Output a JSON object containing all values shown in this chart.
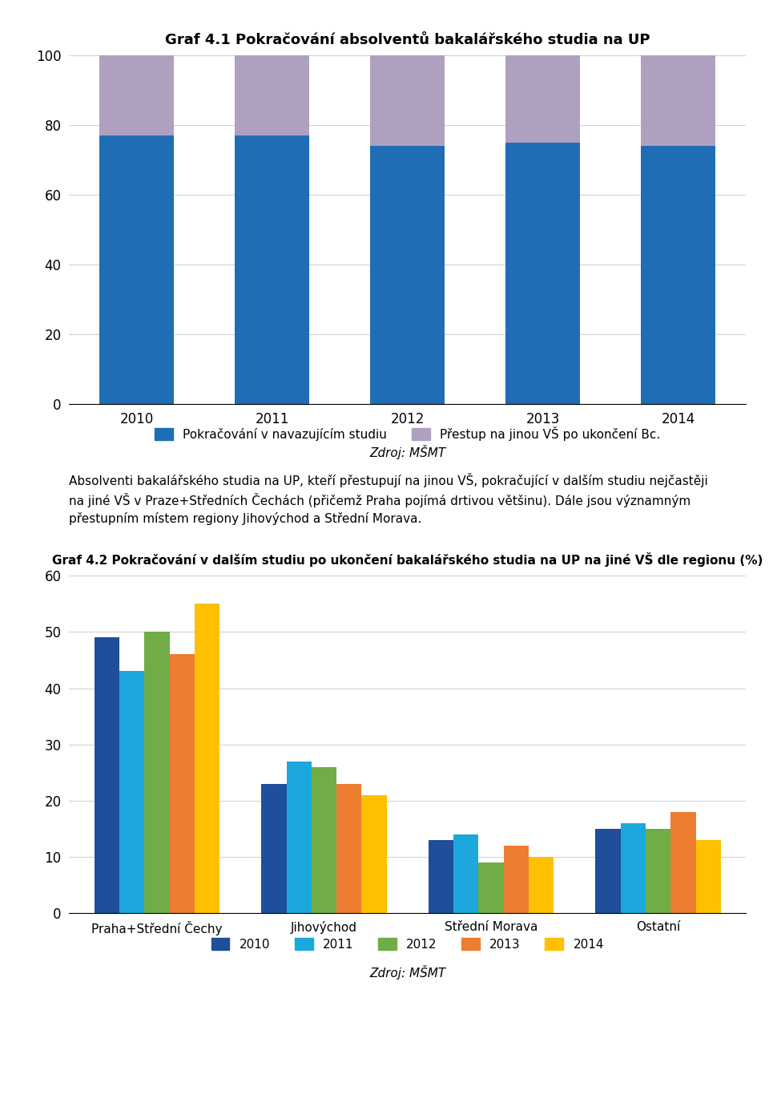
{
  "chart1": {
    "title": "Graf 4.1 Pokračování absolventů bakalářského studia na UP",
    "years": [
      "2010",
      "2011",
      "2012",
      "2013",
      "2014"
    ],
    "blue_values": [
      77,
      77,
      74,
      75,
      74
    ],
    "purple_values": [
      23,
      23,
      26,
      25,
      26
    ],
    "blue_color": "#1F6DB5",
    "purple_color": "#B0A0C0",
    "legend1": "Pokračování v navazujícím studiu",
    "legend2": "Přestup na jinou VŠ po ukončení Bc.",
    "source": "Zdroj: MŠMT",
    "ylim": [
      0,
      100
    ],
    "yticks": [
      0,
      20,
      40,
      60,
      80,
      100
    ]
  },
  "text_block_lines": [
    "Absolventi bakalářského studia na UP, kteří přestupují na jinou VŠ, pokračující v dalším studiu nejčastěji",
    "na jiné VŠ v Praze+Středních Čechách (přičemž Praha pojímá drtivou většinu). Dále jsou významným",
    "přestupním místem regiony Jihovýchod a Střední Morava."
  ],
  "chart2": {
    "title": "Graf 4.2 Pokračování v dalším studiu po ukončení bakalářského studia na UP na jiné VŠ dle regionu (%)",
    "categories": [
      "Praha+Střední Čechy",
      "Jihovýchod",
      "Střední Morava",
      "Ostatní"
    ],
    "years": [
      "2010",
      "2011",
      "2012",
      "2013",
      "2014"
    ],
    "colors": [
      "#1F4E9B",
      "#1CA8DD",
      "#70AD47",
      "#ED7D31",
      "#FFC000"
    ],
    "data": {
      "Praha+Střední Čechy": [
        49,
        43,
        50,
        46,
        55
      ],
      "Jihovýchod": [
        23,
        27,
        26,
        23,
        21
      ],
      "Střední Morava": [
        13,
        14,
        9,
        12,
        10
      ],
      "Ostatní": [
        15,
        16,
        15,
        18,
        13
      ]
    },
    "source": "Zdroj: MŠMT",
    "ylim": [
      0,
      60
    ],
    "yticks": [
      0,
      10,
      20,
      30,
      40,
      50,
      60
    ]
  }
}
